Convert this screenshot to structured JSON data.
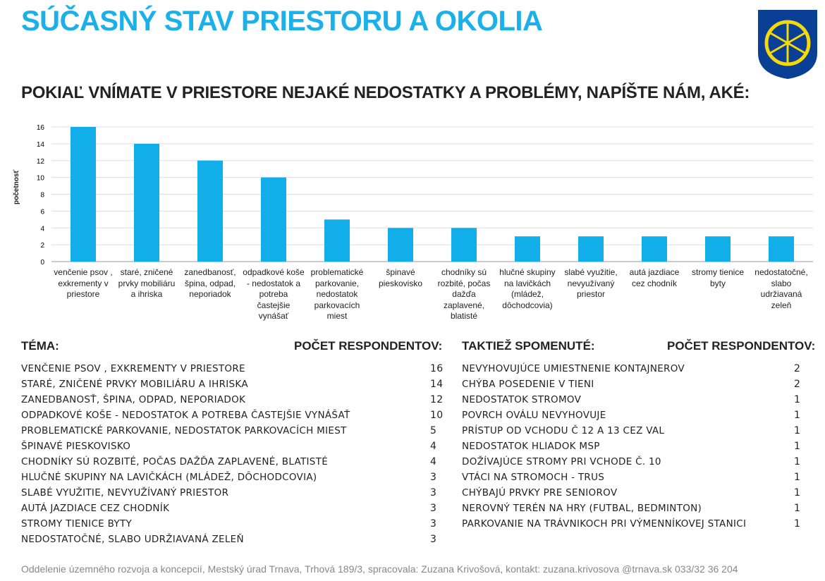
{
  "title": "SÚČASNÝ STAV PRIESTORU A OKOLIA",
  "subtitle": "POKIAĽ VNÍMATE V PRIESTORE NEJAKÉ NEDOSTATKY A PROBLÉMY, NAPÍŠTE NÁM, AKÉ:",
  "colors": {
    "accent": "#1ab0ea",
    "bar": "#12aeea",
    "logo_blue": "#0a3f96",
    "logo_yellow": "#f5d90a"
  },
  "chart_data": {
    "type": "bar",
    "ylabel": "početnosť",
    "xlabel": "",
    "ylim": [
      0,
      16
    ],
    "yticks": [
      0,
      2,
      4,
      6,
      8,
      10,
      12,
      14,
      16
    ],
    "grid": true,
    "categories": [
      "venčenie psov , exkrementy v priestore",
      "staré, zničené prvky mobiliáru a ihriska",
      "zanedbanosť, špina, odpad, neporiadok",
      "odpadkové koše - nedostatok a potreba častejšie vynášať",
      "problematické parkovanie, nedostatok parkovacích miest",
      "špinavé pieskovisko",
      "chodníky sú rozbité, počas dažďa zaplavené, blatisté",
      "hlučné skupiny na lavičkách (mládež, dôchodcovia)",
      "slabé využitie, nevyužívaný priestor",
      "autá jazdiace cez chodník",
      "stromy tienice byty",
      "nedostatočné, slabo udržiavaná zeleň"
    ],
    "values": [
      16,
      14,
      12,
      10,
      5,
      4,
      4,
      3,
      3,
      3,
      3,
      3
    ]
  },
  "table_left": {
    "header_topic": "TÉMA:",
    "header_count": "POČET RESPONDENTOV:",
    "rows": [
      {
        "topic": "Venčenie psov , exkrementy v priestore",
        "count": "16"
      },
      {
        "topic": "Staré, zničené prvky mobiliáru a ihriska",
        "count": "14"
      },
      {
        "topic": "Zanedbanosť, špina, odpad, neporiadok",
        "count": "12"
      },
      {
        "topic": "Odpadkové koše - nedostatok a potreba častejšie vynášať",
        "count": "10"
      },
      {
        "topic": "Problematické parkovanie, nedostatok parkovacích miest",
        "count": "5"
      },
      {
        "topic": "Špinavé pieskovisko",
        "count": "4"
      },
      {
        "topic": "Chodníky sú rozbité,  počas dažďa zaplavené, blatisté",
        "count": "4"
      },
      {
        "topic": "Hlučné skupiny na lavičkách (mládež, dôchodcovia)",
        "count": "3"
      },
      {
        "topic": "Slabé využitie, nevyužívaný priestor",
        "count": "3"
      },
      {
        "topic": "Autá jazdiace cez chodník",
        "count": "3"
      },
      {
        "topic": "Stromy tienice byty",
        "count": "3"
      },
      {
        "topic": "Nedostatočné, slabo udržiavaná zeleň",
        "count": "3"
      }
    ]
  },
  "table_right": {
    "header_topic": "TAKTIEŽ SPOMENUTÉ:",
    "header_count": "POČET RESPONDENTOV:",
    "rows": [
      {
        "topic": "Nevyhovujúce umiestnenie kontajnerov",
        "count": "2"
      },
      {
        "topic": "Chýba posedenie v tieni",
        "count": "2"
      },
      {
        "topic": "Nedostatok stromov",
        "count": "1"
      },
      {
        "topic": "Povrch oválu nevyhovuje",
        "count": "1"
      },
      {
        "topic": "Prístup od vchodu č 12 a 13 cez val",
        "count": "1"
      },
      {
        "topic": "Nedostatok hliadok MsP",
        "count": "1"
      },
      {
        "topic": "Dožívajúce stromy pri vchode č. 10",
        "count": "1"
      },
      {
        "topic": "Vtáci na stromoch - trus",
        "count": "1"
      },
      {
        "topic": "Chýbajú prvky pre seniorov",
        "count": "1"
      },
      {
        "topic": "Nerovný terén na hry  (futbal, bedminton)",
        "count": "1"
      },
      {
        "topic": "Parkovanie na trávnikoch pri výmenníkovej stanici",
        "count": "1"
      }
    ]
  },
  "footer": "Oddelenie územného rozvoja a koncepcií, Mestský úrad Trnava, Trhová 189/3, spracovala: Zuzana Krivošová,  kontakt:  zuzana.krivosova @trnava.sk 033/32 36 204"
}
